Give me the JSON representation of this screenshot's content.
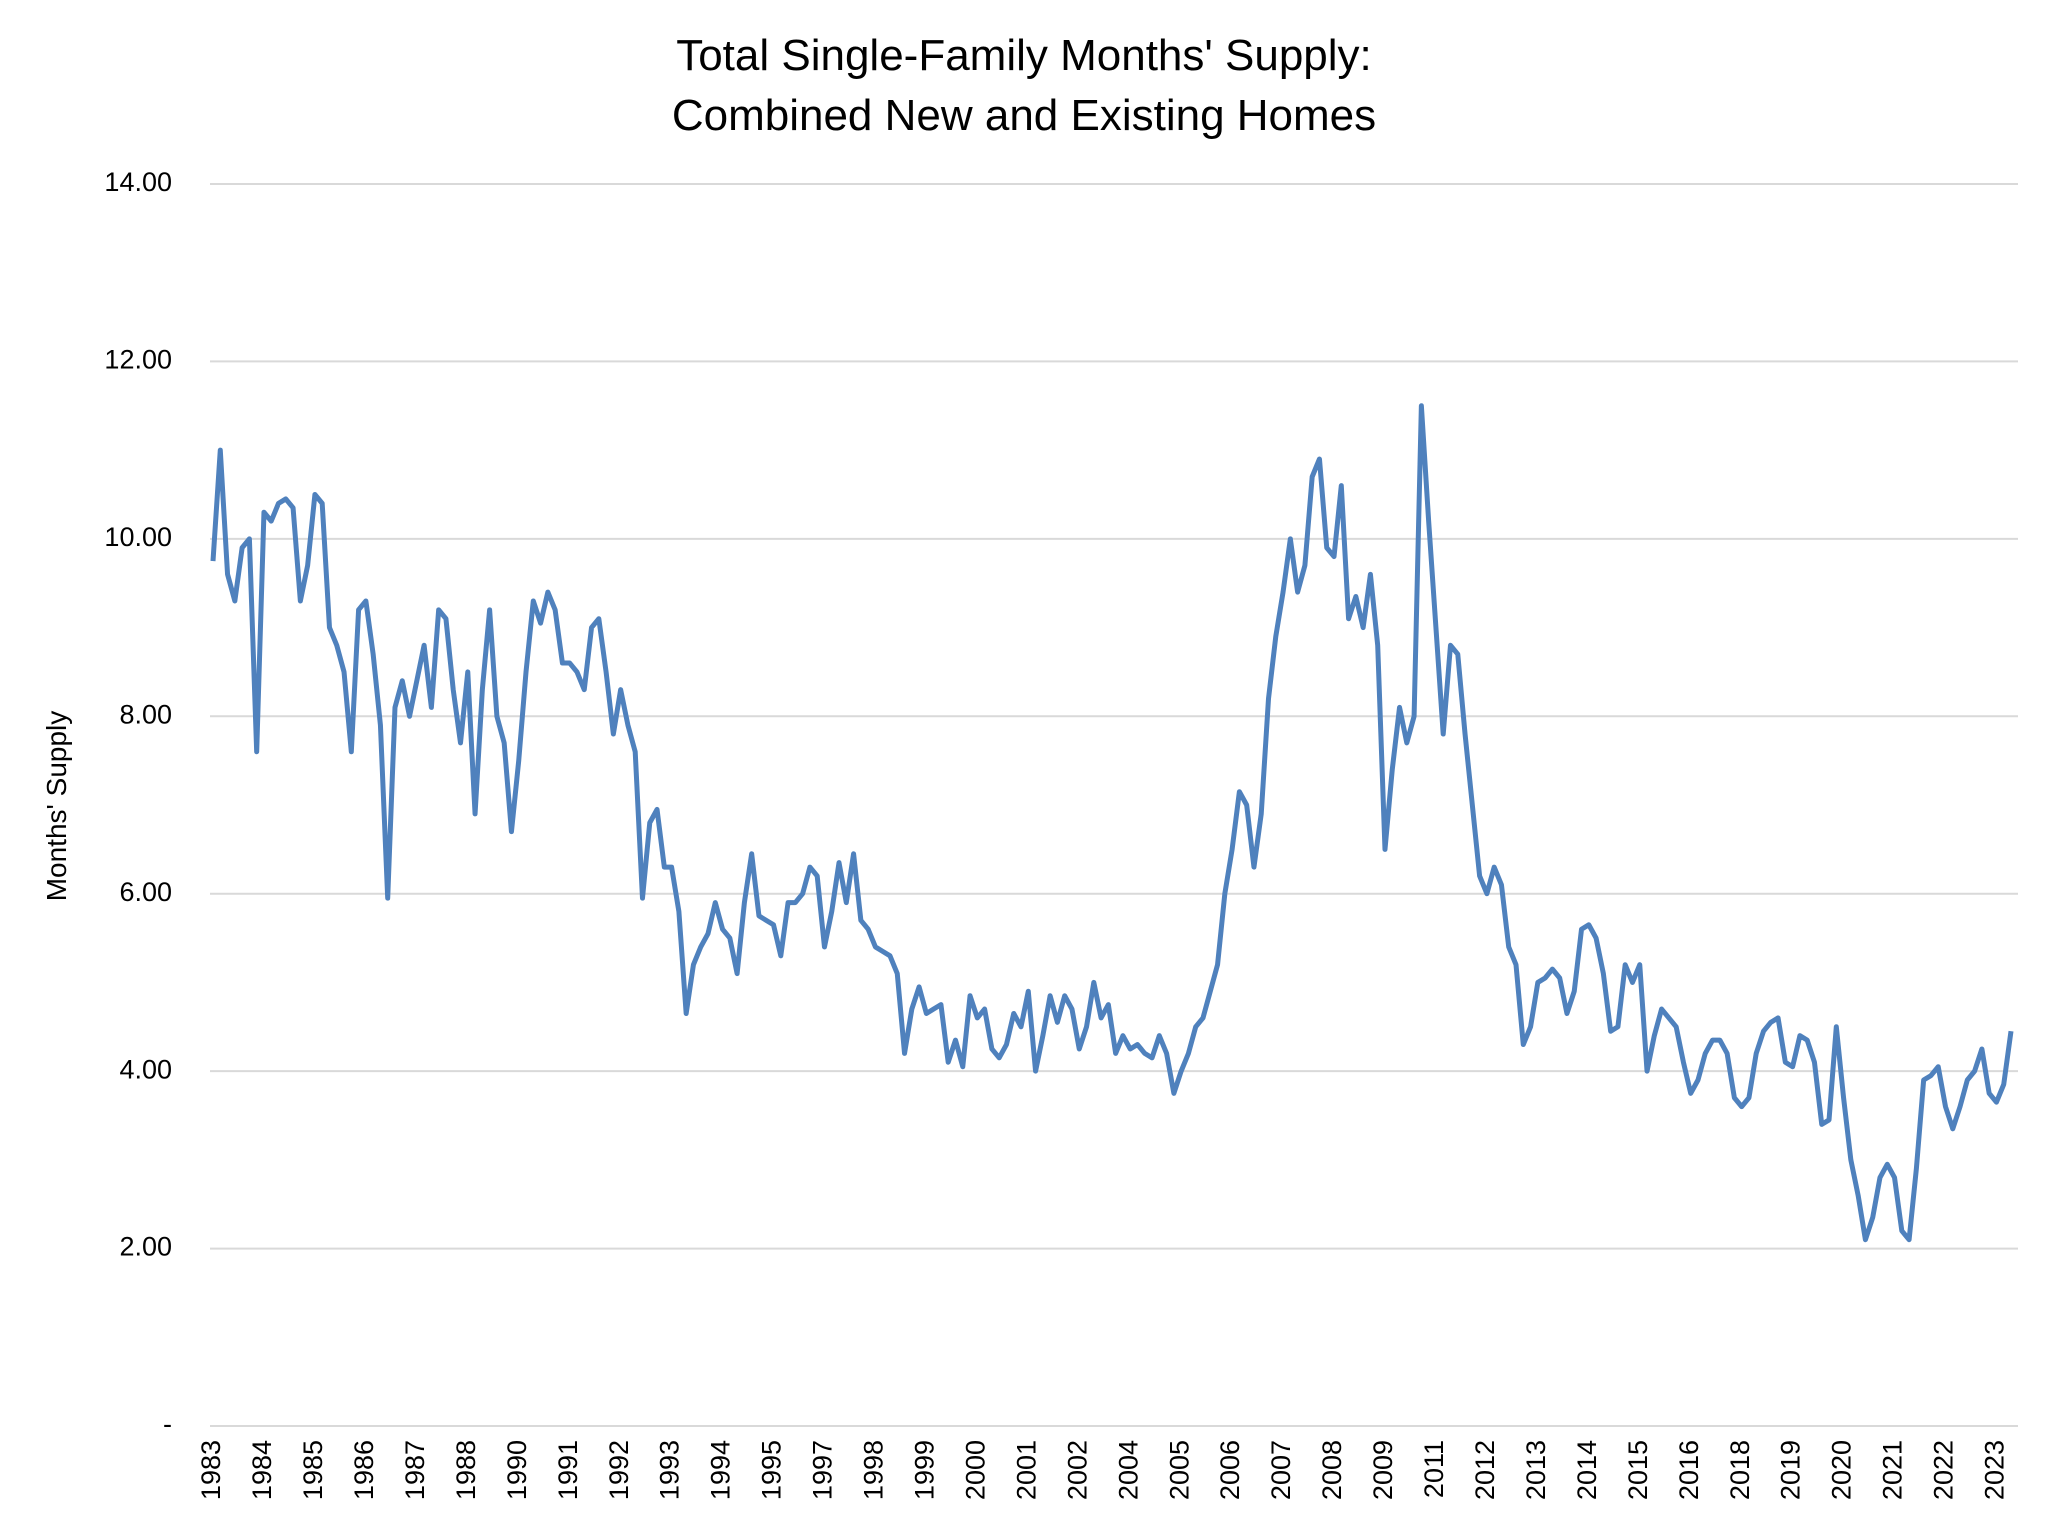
{
  "chart_data": {
    "type": "line",
    "title": [
      "Total Single-Family Months' Supply:",
      "Combined New and Existing Homes"
    ],
    "y_label": "Months' Supply",
    "ylim": [
      0,
      14
    ],
    "yticks": [
      {
        "value": 0,
        "label": "-"
      },
      {
        "value": 2,
        "label": "2.00"
      },
      {
        "value": 4,
        "label": "4.00"
      },
      {
        "value": 6,
        "label": "6.00"
      },
      {
        "value": 8,
        "label": "8.00"
      },
      {
        "value": 10,
        "label": "10.00"
      },
      {
        "value": 12,
        "label": "12.00"
      },
      {
        "value": 14,
        "label": "14.00"
      }
    ],
    "grid": true,
    "categories": [
      "1983",
      null,
      null,
      null,
      null,
      null,
      null,
      "1984",
      null,
      null,
      null,
      null,
      null,
      null,
      "1985",
      null,
      null,
      null,
      null,
      null,
      null,
      "1986",
      null,
      null,
      null,
      null,
      null,
      null,
      "1987",
      null,
      null,
      null,
      null,
      null,
      null,
      "1988",
      null,
      null,
      null,
      null,
      null,
      null,
      "1990",
      null,
      null,
      null,
      null,
      null,
      null,
      "1991",
      null,
      null,
      null,
      null,
      null,
      null,
      "1992",
      null,
      null,
      null,
      null,
      null,
      null,
      "1993",
      null,
      null,
      null,
      null,
      null,
      null,
      "1994",
      null,
      null,
      null,
      null,
      null,
      null,
      "1995",
      null,
      null,
      null,
      null,
      null,
      null,
      "1997",
      null,
      null,
      null,
      null,
      null,
      null,
      "1998",
      null,
      null,
      null,
      null,
      null,
      null,
      "1999",
      null,
      null,
      null,
      null,
      null,
      null,
      "2000",
      null,
      null,
      null,
      null,
      null,
      null,
      "2001",
      null,
      null,
      null,
      null,
      null,
      null,
      "2002",
      null,
      null,
      null,
      null,
      null,
      null,
      "2004",
      null,
      null,
      null,
      null,
      null,
      null,
      "2005",
      null,
      null,
      null,
      null,
      null,
      null,
      "2006",
      null,
      null,
      null,
      null,
      null,
      null,
      "2007",
      null,
      null,
      null,
      null,
      null,
      null,
      "2008",
      null,
      null,
      null,
      null,
      null,
      null,
      "2009",
      null,
      null,
      null,
      null,
      null,
      null,
      "2011",
      null,
      null,
      null,
      null,
      null,
      null,
      "2012",
      null,
      null,
      null,
      null,
      null,
      null,
      "2013",
      null,
      null,
      null,
      null,
      null,
      null,
      "2014",
      null,
      null,
      null,
      null,
      null,
      null,
      "2015",
      null,
      null,
      null,
      null,
      null,
      null,
      "2016",
      null,
      null,
      null,
      null,
      null,
      null,
      "2018",
      null,
      null,
      null,
      null,
      null,
      null,
      "2019",
      null,
      null,
      null,
      null,
      null,
      null,
      "2020",
      null,
      null,
      null,
      null,
      null,
      null,
      "2021",
      null,
      null,
      null,
      null,
      null,
      null,
      "2022",
      null,
      null,
      null,
      null,
      null,
      null,
      "2023",
      null,
      null
    ],
    "series": [
      {
        "color": "#4f81bd",
        "values": [
          9.75,
          11.0,
          9.6,
          9.3,
          9.9,
          10.0,
          7.6,
          10.3,
          10.2,
          10.4,
          10.45,
          10.35,
          9.3,
          9.7,
          10.5,
          10.4,
          9.0,
          8.8,
          8.5,
          7.6,
          9.2,
          9.3,
          8.7,
          7.9,
          5.95,
          8.1,
          8.4,
          8.0,
          8.4,
          8.8,
          8.1,
          9.2,
          9.1,
          8.3,
          7.7,
          8.5,
          6.9,
          8.3,
          9.2,
          8.0,
          7.7,
          6.7,
          7.5,
          8.5,
          9.3,
          9.05,
          9.4,
          9.2,
          8.6,
          8.6,
          8.5,
          8.3,
          9.0,
          9.1,
          8.5,
          7.8,
          8.3,
          7.9,
          7.6,
          5.95,
          6.8,
          6.95,
          6.3,
          6.3,
          5.8,
          4.65,
          5.2,
          5.4,
          5.55,
          5.9,
          5.6,
          5.5,
          5.1,
          5.9,
          6.45,
          5.75,
          5.7,
          5.65,
          5.3,
          5.9,
          5.9,
          6.0,
          6.3,
          6.2,
          5.4,
          5.8,
          6.35,
          5.9,
          6.45,
          5.7,
          5.6,
          5.4,
          5.35,
          5.3,
          5.1,
          4.2,
          4.7,
          4.95,
          4.65,
          4.7,
          4.75,
          4.1,
          4.35,
          4.05,
          4.85,
          4.6,
          4.7,
          4.25,
          4.15,
          4.3,
          4.65,
          4.5,
          4.9,
          4.0,
          4.4,
          4.85,
          4.55,
          4.85,
          4.7,
          4.25,
          4.5,
          5.0,
          4.6,
          4.75,
          4.2,
          4.4,
          4.25,
          4.3,
          4.2,
          4.15,
          4.4,
          4.2,
          3.75,
          4.0,
          4.2,
          4.5,
          4.6,
          4.9,
          5.2,
          6.0,
          6.5,
          7.15,
          7.0,
          6.3,
          6.9,
          8.2,
          8.9,
          9.4,
          10.0,
          9.4,
          9.7,
          10.7,
          10.9,
          9.9,
          9.8,
          10.6,
          9.1,
          9.35,
          9.0,
          9.6,
          8.8,
          6.5,
          7.4,
          8.1,
          7.7,
          8.0,
          11.5,
          10.2,
          9.0,
          7.8,
          8.8,
          8.7,
          7.8,
          7.0,
          6.2,
          6.0,
          6.3,
          6.1,
          5.4,
          5.2,
          4.3,
          4.5,
          5.0,
          5.05,
          5.15,
          5.05,
          4.65,
          4.9,
          5.6,
          5.65,
          5.5,
          5.1,
          4.45,
          4.5,
          5.2,
          5.0,
          5.2,
          4.0,
          4.4,
          4.7,
          4.6,
          4.5,
          4.1,
          3.75,
          3.9,
          4.2,
          4.35,
          4.35,
          4.2,
          3.7,
          3.6,
          3.7,
          4.2,
          4.45,
          4.55,
          4.6,
          4.1,
          4.05,
          4.4,
          4.35,
          4.1,
          3.4,
          3.45,
          4.5,
          3.7,
          3.0,
          2.6,
          2.1,
          2.35,
          2.8,
          2.95,
          2.8,
          2.2,
          2.1,
          2.9,
          3.9,
          3.95,
          4.05,
          3.6,
          3.35,
          3.6,
          3.9,
          4.0,
          4.25,
          3.75,
          3.65,
          3.85,
          4.45
        ]
      }
    ]
  }
}
